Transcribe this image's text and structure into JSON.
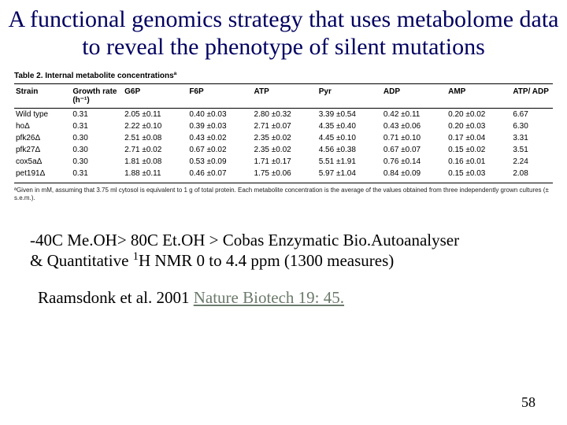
{
  "title": "A functional genomics strategy that uses metabolome data to reveal the phenotype of silent mutations",
  "table": {
    "caption": "Table 2. Internal metabolite concentrationsª",
    "columns": [
      "Strain",
      "Growth rate (h⁻¹)",
      "G6P",
      "F6P",
      "ATP",
      "Pyr",
      "ADP",
      "AMP",
      "ATP/ ADP"
    ],
    "rows": [
      [
        "Wild type",
        "0.31",
        "2.05 ±0.11",
        "0.40 ±0.03",
        "2.80 ±0.32",
        "3.39 ±0.54",
        "0.42 ±0.11",
        "0.20 ±0.02",
        "6.67"
      ],
      [
        "hoΔ",
        "0.31",
        "2.22 ±0.10",
        "0.39 ±0.03",
        "2.71 ±0.07",
        "4.35 ±0.40",
        "0.43 ±0.06",
        "0.20 ±0.03",
        "6.30"
      ],
      [
        "pfk26Δ",
        "0.30",
        "2.51 ±0.08",
        "0.43 ±0.02",
        "2.35 ±0.02",
        "4.45 ±0.10",
        "0.71 ±0.10",
        "0.17 ±0.04",
        "3.31"
      ],
      [
        "pfk27Δ",
        "0.30",
        "2.71 ±0.02",
        "0.67 ±0.02",
        "2.35 ±0.02",
        "4.56 ±0.38",
        "0.67 ±0.07",
        "0.15 ±0.02",
        "3.51"
      ],
      [
        "cox5aΔ",
        "0.30",
        "1.81 ±0.08",
        "0.53 ±0.09",
        "1.71 ±0.17",
        "5.51 ±1.91",
        "0.76 ±0.14",
        "0.16 ±0.01",
        "2.24"
      ],
      [
        "pet191Δ",
        "0.31",
        "1.88 ±0.11",
        "0.46 ±0.07",
        "1.75 ±0.06",
        "5.97 ±1.04",
        "0.84 ±0.09",
        "0.15 ±0.03",
        "2.08"
      ]
    ],
    "footnote": "ªGiven in mM, assuming that 3.75 ml cytosol is equivalent to 1 g of total protein. Each metabolite concentration is the average of the values obtained from three independently grown cultures (± s.e.m.)."
  },
  "methods_line1": "-40C Me.OH> 80C Et.OH >  Cobas Enzymatic  Bio.Autoanalyser",
  "methods_line2_a": "& Quantitative ",
  "methods_line2_sup": "1",
  "methods_line2_b": "H NMR  0 to 4.4 ppm (1300 measures)",
  "citation_author": "Raamsdonk et al. 2001 ",
  "citation_journal": "Nature Biotech 19: 45.",
  "page_number": "58",
  "colors": {
    "title_color": "#000060",
    "text_color": "#000000",
    "underline_color": "#6b7a6b",
    "background": "#ffffff"
  }
}
